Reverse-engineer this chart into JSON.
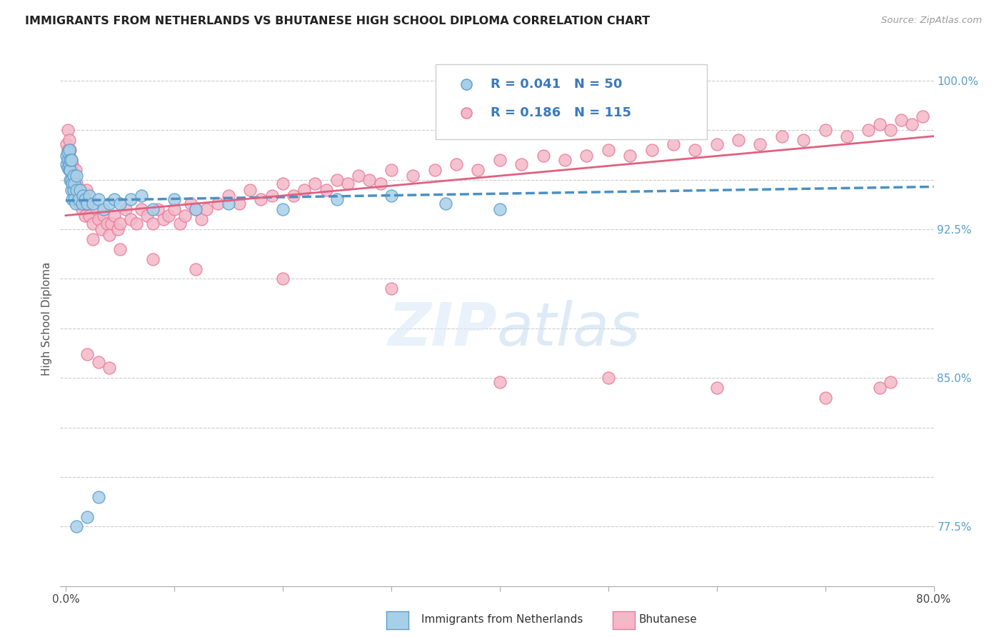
{
  "title": "IMMIGRANTS FROM NETHERLANDS VS BHUTANESE HIGH SCHOOL DIPLOMA CORRELATION CHART",
  "source": "Source: ZipAtlas.com",
  "ylabel": "High School Diploma",
  "color_blue": "#a8cfe8",
  "color_blue_edge": "#5b9ec9",
  "color_pink": "#f4b8c8",
  "color_pink_edge": "#e87a9a",
  "color_blue_line": "#4a90c4",
  "color_pink_line": "#e06080",
  "color_legend_text": "#3a7abf",
  "color_right_axis": "#5b9ec9",
  "background": "#ffffff",
  "blue_x": [
    0.001,
    0.001,
    0.002,
    0.002,
    0.002,
    0.003,
    0.003,
    0.003,
    0.004,
    0.004,
    0.004,
    0.005,
    0.005,
    0.005,
    0.006,
    0.006,
    0.007,
    0.007,
    0.008,
    0.008,
    0.009,
    0.01,
    0.01,
    0.012,
    0.013,
    0.015,
    0.016,
    0.018,
    0.02,
    0.022,
    0.025,
    0.03,
    0.035,
    0.04,
    0.045,
    0.05,
    0.06,
    0.07,
    0.08,
    0.1,
    0.12,
    0.15,
    0.2,
    0.25,
    0.3,
    0.35,
    0.4,
    0.01,
    0.02,
    0.03
  ],
  "blue_y": [
    0.958,
    0.962,
    0.956,
    0.96,
    0.964,
    0.955,
    0.958,
    0.965,
    0.95,
    0.955,
    0.96,
    0.945,
    0.95,
    0.96,
    0.94,
    0.948,
    0.952,
    0.945,
    0.94,
    0.948,
    0.938,
    0.945,
    0.952,
    0.94,
    0.945,
    0.938,
    0.942,
    0.94,
    0.938,
    0.942,
    0.938,
    0.94,
    0.935,
    0.938,
    0.94,
    0.938,
    0.94,
    0.942,
    0.935,
    0.94,
    0.935,
    0.938,
    0.935,
    0.94,
    0.942,
    0.938,
    0.935,
    0.775,
    0.78,
    0.79
  ],
  "pink_x": [
    0.001,
    0.002,
    0.002,
    0.003,
    0.003,
    0.004,
    0.004,
    0.005,
    0.005,
    0.006,
    0.006,
    0.007,
    0.007,
    0.008,
    0.008,
    0.009,
    0.01,
    0.01,
    0.011,
    0.012,
    0.013,
    0.014,
    0.015,
    0.016,
    0.017,
    0.018,
    0.019,
    0.02,
    0.022,
    0.025,
    0.028,
    0.03,
    0.033,
    0.035,
    0.038,
    0.04,
    0.042,
    0.045,
    0.048,
    0.05,
    0.055,
    0.06,
    0.065,
    0.07,
    0.075,
    0.08,
    0.085,
    0.09,
    0.095,
    0.1,
    0.105,
    0.11,
    0.115,
    0.12,
    0.125,
    0.13,
    0.14,
    0.15,
    0.16,
    0.17,
    0.18,
    0.19,
    0.2,
    0.21,
    0.22,
    0.23,
    0.24,
    0.25,
    0.26,
    0.27,
    0.28,
    0.29,
    0.3,
    0.32,
    0.34,
    0.36,
    0.38,
    0.4,
    0.42,
    0.44,
    0.46,
    0.48,
    0.5,
    0.52,
    0.54,
    0.56,
    0.58,
    0.6,
    0.62,
    0.64,
    0.66,
    0.68,
    0.7,
    0.72,
    0.74,
    0.75,
    0.76,
    0.77,
    0.78,
    0.79,
    0.025,
    0.05,
    0.08,
    0.12,
    0.2,
    0.3,
    0.4,
    0.5,
    0.6,
    0.7,
    0.75,
    0.76,
    0.02,
    0.03,
    0.04
  ],
  "pink_y": [
    0.968,
    0.965,
    0.975,
    0.97,
    0.962,
    0.958,
    0.965,
    0.96,
    0.955,
    0.95,
    0.958,
    0.945,
    0.952,
    0.948,
    0.942,
    0.955,
    0.94,
    0.948,
    0.942,
    0.938,
    0.945,
    0.94,
    0.935,
    0.942,
    0.938,
    0.932,
    0.945,
    0.938,
    0.932,
    0.928,
    0.935,
    0.93,
    0.925,
    0.932,
    0.928,
    0.922,
    0.928,
    0.932,
    0.925,
    0.928,
    0.935,
    0.93,
    0.928,
    0.935,
    0.932,
    0.928,
    0.935,
    0.93,
    0.932,
    0.935,
    0.928,
    0.932,
    0.938,
    0.935,
    0.93,
    0.935,
    0.938,
    0.942,
    0.938,
    0.945,
    0.94,
    0.942,
    0.948,
    0.942,
    0.945,
    0.948,
    0.945,
    0.95,
    0.948,
    0.952,
    0.95,
    0.948,
    0.955,
    0.952,
    0.955,
    0.958,
    0.955,
    0.96,
    0.958,
    0.962,
    0.96,
    0.962,
    0.965,
    0.962,
    0.965,
    0.968,
    0.965,
    0.968,
    0.97,
    0.968,
    0.972,
    0.97,
    0.975,
    0.972,
    0.975,
    0.978,
    0.975,
    0.98,
    0.978,
    0.982,
    0.92,
    0.915,
    0.91,
    0.905,
    0.9,
    0.895,
    0.848,
    0.85,
    0.845,
    0.84,
    0.845,
    0.848,
    0.862,
    0.858,
    0.855
  ]
}
